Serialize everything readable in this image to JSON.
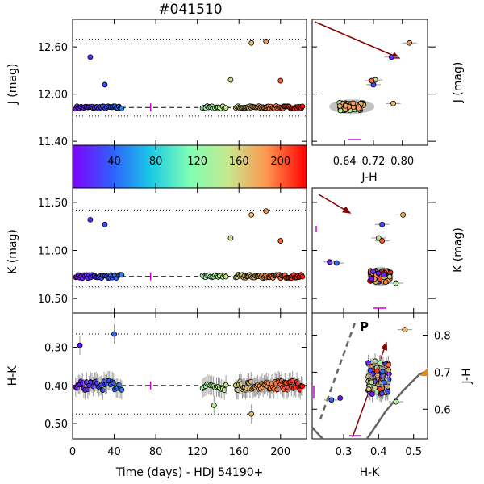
{
  "title": "#041510",
  "colormap": {
    "label_ticks": [
      "40",
      "80",
      "120",
      "160",
      "200"
    ],
    "min": 0,
    "max": 225
  },
  "chart_data": [
    {
      "id": "J_lc",
      "type": "scatter",
      "ylabel": "J (mag)",
      "xlim": [
        0,
        225
      ],
      "ylim": [
        12.95,
        11.35
      ],
      "yticks": [
        "11.40",
        "12.00",
        "12.60"
      ],
      "ytick_values": [
        11.4,
        12.0,
        12.6
      ],
      "dashed_level": 11.83,
      "dotted_levels": [
        11.72,
        12.7
      ],
      "outliers": [
        {
          "t": 17,
          "v": 12.47
        },
        {
          "t": 31,
          "v": 12.12
        },
        {
          "t": 152,
          "v": 12.18
        },
        {
          "t": 172,
          "v": 12.65
        },
        {
          "t": 186,
          "v": 12.67
        },
        {
          "t": 200,
          "v": 12.17
        }
      ]
    },
    {
      "id": "K_lc",
      "type": "scatter",
      "ylabel": "K (mag)",
      "xlim": [
        0,
        225
      ],
      "ylim": [
        11.65,
        10.35
      ],
      "yticks": [
        "10.50",
        "11.00",
        "11.50"
      ],
      "ytick_values": [
        10.5,
        11.0,
        11.5
      ],
      "dashed_level": 10.73,
      "dotted_levels": [
        10.62,
        11.42
      ],
      "outliers": [
        {
          "t": 17,
          "v": 11.32
        },
        {
          "t": 31,
          "v": 11.27
        },
        {
          "t": 152,
          "v": 11.13
        },
        {
          "t": 172,
          "v": 11.37
        },
        {
          "t": 186,
          "v": 11.41
        },
        {
          "t": 200,
          "v": 11.1
        }
      ]
    },
    {
      "id": "HK_lc",
      "type": "scatter",
      "xlabel": "Time (days) - HDJ 54190+",
      "ylabel": "H-K",
      "xlim": [
        0,
        225
      ],
      "ylim": [
        0.21,
        0.54
      ],
      "yticks": [
        "0.30",
        "0.40",
        "0.50"
      ],
      "ytick_values": [
        0.3,
        0.4,
        0.5
      ],
      "xticks": [
        "0",
        "40",
        "80",
        "120",
        "160",
        "200"
      ],
      "xtick_values": [
        0,
        40,
        80,
        120,
        160,
        200
      ],
      "dashed_level": 0.4,
      "dotted_levels": [
        0.475,
        0.265
      ],
      "outliers": [
        {
          "t": 7,
          "v": 0.295
        },
        {
          "t": 40,
          "v": 0.265
        },
        {
          "t": 172,
          "v": 0.475
        },
        {
          "t": 136,
          "v": 0.452
        }
      ]
    },
    {
      "id": "J_vs_JH",
      "type": "scatter",
      "xlabel": "J-H",
      "ylabel": "J (mag)",
      "xticks": [
        "0.64",
        "0.72",
        "0.80"
      ],
      "xtick_values": [
        0.64,
        0.72,
        0.8
      ],
      "xlim": [
        0.55,
        0.87
      ],
      "ylim": [
        12.95,
        11.35
      ]
    },
    {
      "id": "K_vs_HK",
      "type": "scatter",
      "ylabel": "K (mag)",
      "xlim": [
        0.21,
        0.54
      ],
      "ylim": [
        11.65,
        10.35
      ]
    },
    {
      "id": "JH_vs_HK",
      "type": "scatter",
      "xlabel": "H-K",
      "ylabel": "J-H",
      "xticks": [
        "0.3",
        "0.4",
        "0.5"
      ],
      "xtick_values": [
        0.3,
        0.4,
        0.5
      ],
      "yticks": [
        "0.6",
        "0.7",
        "0.8"
      ],
      "ytick_values": [
        0.6,
        0.7,
        0.8
      ],
      "xlim": [
        0.21,
        0.54
      ],
      "ylim": [
        0.52,
        0.86
      ],
      "annotation": "P"
    }
  ]
}
